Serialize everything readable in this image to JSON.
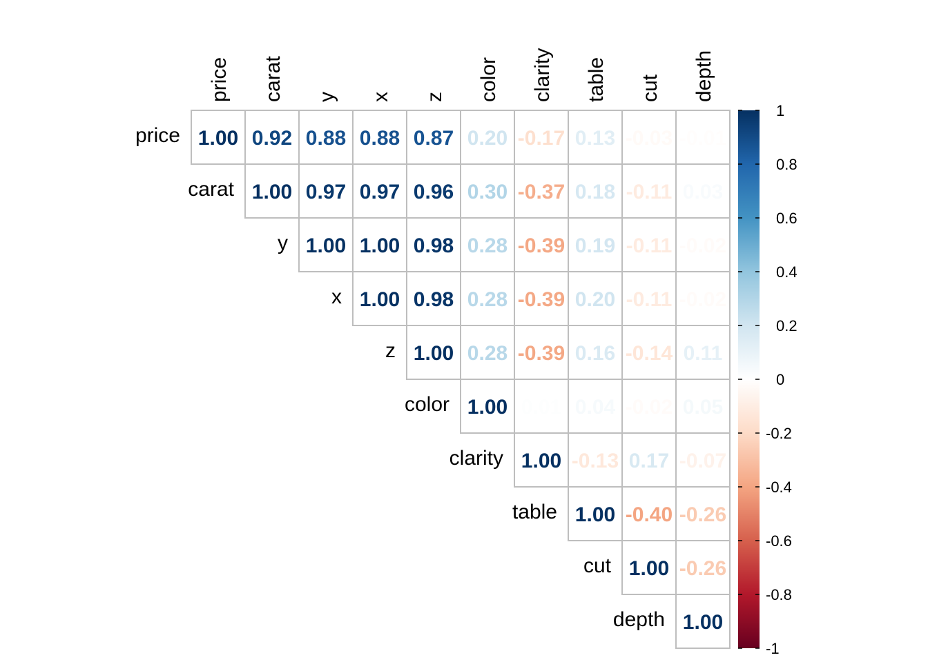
{
  "chart_data": {
    "type": "heatmap",
    "variables": [
      "price",
      "carat",
      "y",
      "x",
      "z",
      "color",
      "clarity",
      "table",
      "cut",
      "depth"
    ],
    "layout": "upper-triangle",
    "matrix": [
      [
        1.0,
        0.92,
        0.88,
        0.88,
        0.87,
        0.2,
        -0.17,
        0.13,
        -0.03,
        -0.01
      ],
      [
        null,
        1.0,
        0.97,
        0.97,
        0.96,
        0.3,
        -0.37,
        0.18,
        -0.11,
        0.03
      ],
      [
        null,
        null,
        1.0,
        1.0,
        0.98,
        0.28,
        -0.39,
        0.19,
        -0.11,
        -0.02
      ],
      [
        null,
        null,
        null,
        1.0,
        0.98,
        0.28,
        -0.39,
        0.2,
        -0.11,
        -0.02
      ],
      [
        null,
        null,
        null,
        null,
        1.0,
        0.28,
        -0.39,
        0.16,
        -0.14,
        0.11
      ],
      [
        null,
        null,
        null,
        null,
        null,
        1.0,
        0.01,
        0.04,
        -0.02,
        0.05
      ],
      [
        null,
        null,
        null,
        null,
        null,
        null,
        1.0,
        -0.13,
        0.17,
        -0.07
      ],
      [
        null,
        null,
        null,
        null,
        null,
        null,
        null,
        1.0,
        -0.4,
        -0.26
      ],
      [
        null,
        null,
        null,
        null,
        null,
        null,
        null,
        null,
        1.0,
        -0.26
      ],
      [
        null,
        null,
        null,
        null,
        null,
        null,
        null,
        null,
        null,
        1.0
      ]
    ],
    "colorbar": {
      "range": [
        -1,
        1
      ],
      "ticks": [
        "1",
        "0.8",
        "0.6",
        "0.4",
        "0.2",
        "0",
        "-0.2",
        "-0.4",
        "-0.6",
        "-0.8",
        "-1"
      ],
      "palette": [
        "#67001F",
        "#B2182B",
        "#D6604D",
        "#F4A582",
        "#FDDBC7",
        "#FFFFFF",
        "#D1E5F0",
        "#92C5DE",
        "#4393C3",
        "#2166AC",
        "#053061"
      ]
    },
    "grid": true,
    "legend": "right"
  }
}
